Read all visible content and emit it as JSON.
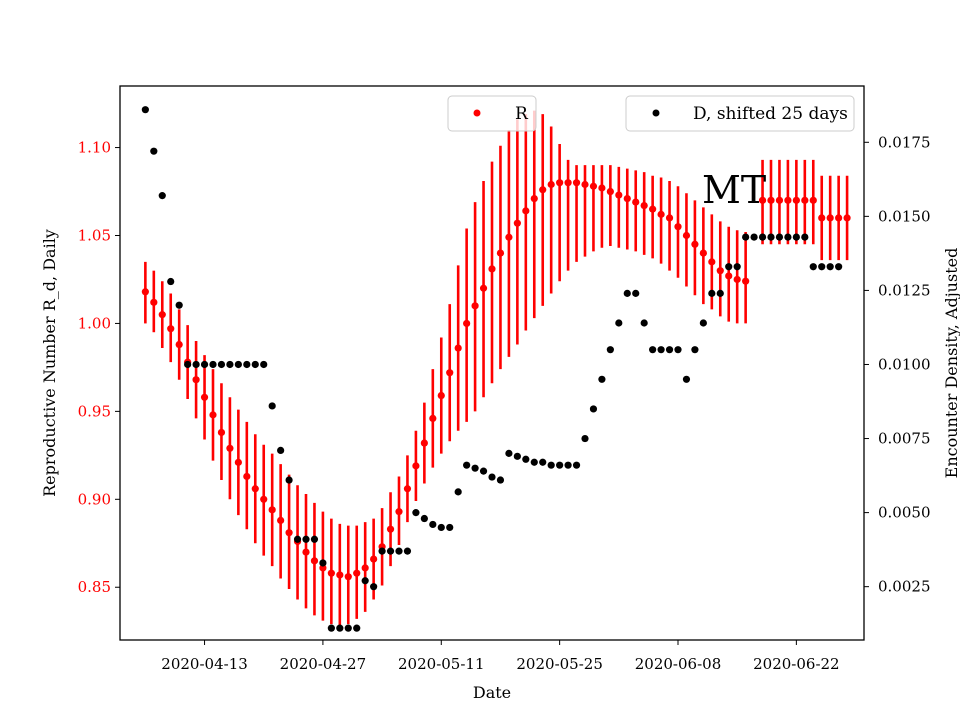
{
  "chart_data": {
    "type": "scatter",
    "annotation": "MT",
    "xlabel": "Date",
    "x_tick_labels": [
      "2020-04-13",
      "2020-04-27",
      "2020-05-11",
      "2020-05-25",
      "2020-06-08",
      "2020-06-22"
    ],
    "xlim": [
      "2020-04-03",
      "2020-06-30"
    ],
    "y_left": {
      "label": "Reproductive Number R_d, Daily",
      "color": "#ff0000",
      "ticks": [
        "0.85",
        "0.90",
        "0.95",
        "1.00",
        "1.05",
        "1.10"
      ],
      "ylim": [
        0.82,
        1.135
      ]
    },
    "y_right": {
      "label": "Encounter Density, Adjusted",
      "color": "#000000",
      "ticks": [
        "0.0025",
        "0.0050",
        "0.0075",
        "0.0100",
        "0.0125",
        "0.0150",
        "0.0175"
      ],
      "ylim": [
        0.0007,
        0.0194
      ]
    },
    "legend_left": {
      "label": "R",
      "color": "#ff0000",
      "placement": "top-center"
    },
    "legend_right": {
      "label": "D, shifted 25 days",
      "color": "#000000",
      "placement": "top-right"
    },
    "series": [
      {
        "name": "R",
        "axis": "left",
        "color": "#ff0000",
        "start_date": "2020-04-06",
        "values": [
          1.018,
          1.012,
          1.005,
          0.997,
          0.988,
          0.978,
          0.968,
          0.958,
          0.948,
          0.938,
          0.929,
          0.921,
          0.913,
          0.906,
          0.9,
          0.894,
          0.888,
          0.881,
          0.876,
          0.87,
          0.865,
          0.861,
          0.858,
          0.857,
          0.856,
          0.858,
          0.861,
          0.866,
          0.873,
          0.883,
          0.893,
          0.906,
          0.919,
          0.932,
          0.946,
          0.959,
          0.972,
          0.986,
          1.0,
          1.01,
          1.02,
          1.031,
          1.04,
          1.049,
          1.057,
          1.064,
          1.071,
          1.076,
          1.079,
          1.08,
          1.08,
          1.08,
          1.079,
          1.078,
          1.077,
          1.075,
          1.073,
          1.071,
          1.069,
          1.067,
          1.065,
          1.062,
          1.06,
          1.055,
          1.05,
          1.045,
          1.04,
          1.035,
          1.03,
          1.027,
          1.025,
          1.024
        ],
        "err_low": [
          1.0,
          0.995,
          0.986,
          0.978,
          0.968,
          0.957,
          0.946,
          0.934,
          0.922,
          0.911,
          0.9,
          0.891,
          0.883,
          0.875,
          0.868,
          0.862,
          0.855,
          0.849,
          0.843,
          0.838,
          0.834,
          0.831,
          0.829,
          0.828,
          0.829,
          0.832,
          0.836,
          0.843,
          0.851,
          0.862,
          0.874,
          0.887,
          0.899,
          0.909,
          0.918,
          0.926,
          0.933,
          0.939,
          0.944,
          0.95,
          0.958,
          0.966,
          0.974,
          0.981,
          0.988,
          0.996,
          1.003,
          1.01,
          1.017,
          1.024,
          1.03,
          1.035,
          1.038,
          1.041,
          1.043,
          1.044,
          1.043,
          1.042,
          1.041,
          1.039,
          1.037,
          1.034,
          1.03,
          1.026,
          1.021,
          1.016,
          1.011,
          1.008,
          1.004,
          1.001,
          1.0,
          1.0
        ],
        "err_high": [
          1.035,
          1.03,
          1.024,
          1.017,
          1.008,
          0.999,
          0.99,
          0.982,
          0.974,
          0.966,
          0.958,
          0.951,
          0.944,
          0.937,
          0.931,
          0.926,
          0.92,
          0.914,
          0.908,
          0.903,
          0.898,
          0.893,
          0.889,
          0.886,
          0.885,
          0.885,
          0.887,
          0.889,
          0.895,
          0.904,
          0.913,
          0.925,
          0.939,
          0.955,
          0.974,
          0.992,
          1.011,
          1.033,
          1.054,
          1.069,
          1.081,
          1.092,
          1.101,
          1.11,
          1.116,
          1.119,
          1.121,
          1.119,
          1.112,
          1.102,
          1.093,
          1.09,
          1.09,
          1.09,
          1.09,
          1.09,
          1.089,
          1.088,
          1.087,
          1.086,
          1.084,
          1.083,
          1.081,
          1.078,
          1.074,
          1.07,
          1.066,
          1.062,
          1.058,
          1.055,
          1.053,
          1.052
        ]
      },
      {
        "name": "R continuation",
        "axis": "left",
        "color": "#ff0000",
        "start_date": "2020-06-18",
        "values": [
          1.07,
          1.07,
          1.07,
          1.07,
          1.07,
          1.07,
          1.07,
          1.06,
          1.06,
          1.06,
          1.06
        ],
        "err_low": [
          1.045,
          1.045,
          1.045,
          1.045,
          1.045,
          1.045,
          1.045,
          1.036,
          1.036,
          1.036,
          1.036
        ],
        "err_high": [
          1.093,
          1.093,
          1.093,
          1.093,
          1.093,
          1.093,
          1.093,
          1.084,
          1.084,
          1.084,
          1.084
        ]
      },
      {
        "name": "D, shifted 25 days",
        "axis": "right",
        "color": "#000000",
        "points": [
          [
            "2020-04-06",
            0.0186
          ],
          [
            "2020-04-07",
            0.0172
          ],
          [
            "2020-04-08",
            0.0157
          ],
          [
            "2020-04-09",
            0.0128
          ],
          [
            "2020-04-10",
            0.012
          ],
          [
            "2020-04-11",
            0.01
          ],
          [
            "2020-04-12",
            0.01
          ],
          [
            "2020-04-13",
            0.01
          ],
          [
            "2020-04-14",
            0.01
          ],
          [
            "2020-04-15",
            0.01
          ],
          [
            "2020-04-16",
            0.01
          ],
          [
            "2020-04-17",
            0.01
          ],
          [
            "2020-04-18",
            0.01
          ],
          [
            "2020-04-19",
            0.01
          ],
          [
            "2020-04-20",
            0.01
          ],
          [
            "2020-04-21",
            0.0086
          ],
          [
            "2020-04-22",
            0.0071
          ],
          [
            "2020-04-23",
            0.0061
          ],
          [
            "2020-04-24",
            0.0041
          ],
          [
            "2020-04-25",
            0.0041
          ],
          [
            "2020-04-26",
            0.0041
          ],
          [
            "2020-04-27",
            0.0033
          ],
          [
            "2020-04-28",
            0.0011
          ],
          [
            "2020-04-29",
            0.0011
          ],
          [
            "2020-04-30",
            0.0011
          ],
          [
            "2020-05-01",
            0.0011
          ],
          [
            "2020-05-02",
            0.0027
          ],
          [
            "2020-05-03",
            0.0025
          ],
          [
            "2020-05-04",
            0.0037
          ],
          [
            "2020-05-05",
            0.0037
          ],
          [
            "2020-05-06",
            0.0037
          ],
          [
            "2020-05-07",
            0.0037
          ],
          [
            "2020-05-08",
            0.005
          ],
          [
            "2020-05-09",
            0.0048
          ],
          [
            "2020-05-10",
            0.0046
          ],
          [
            "2020-05-11",
            0.0045
          ],
          [
            "2020-05-12",
            0.0045
          ],
          [
            "2020-05-13",
            0.0057
          ],
          [
            "2020-05-14",
            0.0066
          ],
          [
            "2020-05-15",
            0.0065
          ],
          [
            "2020-05-16",
            0.0064
          ],
          [
            "2020-05-17",
            0.0062
          ],
          [
            "2020-05-18",
            0.0061
          ],
          [
            "2020-05-19",
            0.007
          ],
          [
            "2020-05-20",
            0.0069
          ],
          [
            "2020-05-21",
            0.0068
          ],
          [
            "2020-05-22",
            0.0067
          ],
          [
            "2020-05-23",
            0.0067
          ],
          [
            "2020-05-24",
            0.0066
          ],
          [
            "2020-05-25",
            0.0066
          ],
          [
            "2020-05-26",
            0.0066
          ],
          [
            "2020-05-27",
            0.0066
          ],
          [
            "2020-05-28",
            0.0075
          ],
          [
            "2020-05-29",
            0.0085
          ],
          [
            "2020-05-30",
            0.0095
          ],
          [
            "2020-05-31",
            0.0105
          ],
          [
            "2020-06-01",
            0.0114
          ],
          [
            "2020-06-02",
            0.0124
          ],
          [
            "2020-06-03",
            0.0124
          ],
          [
            "2020-06-04",
            0.0114
          ],
          [
            "2020-06-05",
            0.0105
          ],
          [
            "2020-06-06",
            0.0105
          ],
          [
            "2020-06-07",
            0.0105
          ],
          [
            "2020-06-08",
            0.0105
          ],
          [
            "2020-06-09",
            0.0095
          ],
          [
            "2020-06-10",
            0.0105
          ],
          [
            "2020-06-11",
            0.0114
          ],
          [
            "2020-06-12",
            0.0124
          ],
          [
            "2020-06-13",
            0.0124
          ],
          [
            "2020-06-14",
            0.0133
          ],
          [
            "2020-06-15",
            0.0133
          ],
          [
            "2020-06-16",
            0.0143
          ],
          [
            "2020-06-17",
            0.0143
          ],
          [
            "2020-06-18",
            0.0143
          ],
          [
            "2020-06-19",
            0.0143
          ],
          [
            "2020-06-20",
            0.0143
          ],
          [
            "2020-06-21",
            0.0143
          ],
          [
            "2020-06-22",
            0.0143
          ],
          [
            "2020-06-23",
            0.0143
          ],
          [
            "2020-06-24",
            0.0133
          ],
          [
            "2020-06-25",
            0.0133
          ],
          [
            "2020-06-26",
            0.0133
          ],
          [
            "2020-06-27",
            0.0133
          ]
        ]
      }
    ]
  }
}
